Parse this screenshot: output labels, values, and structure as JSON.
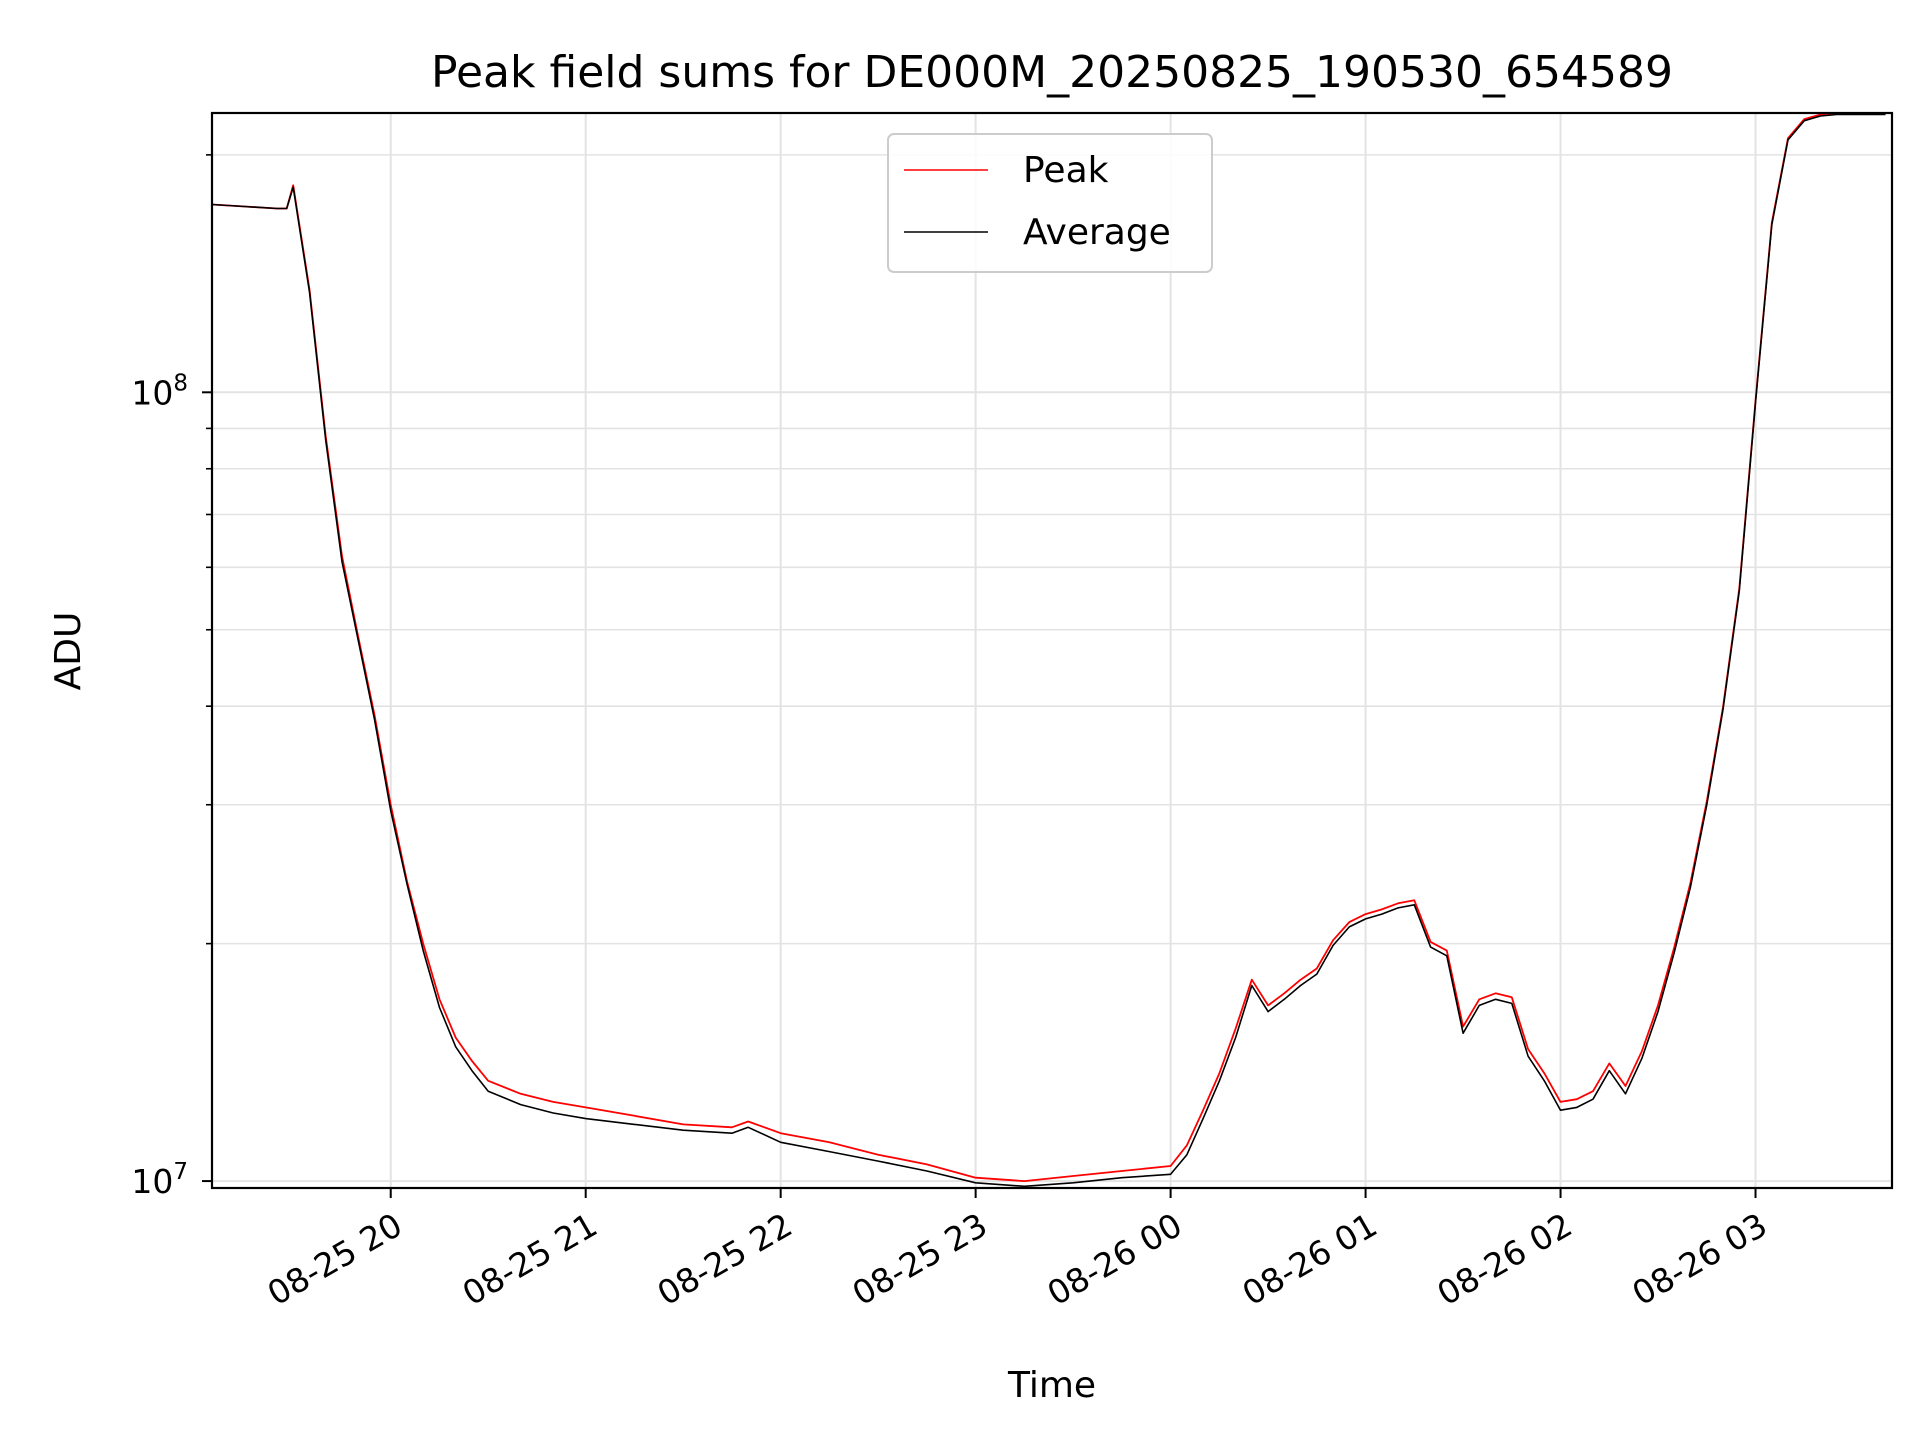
{
  "chart_data": {
    "type": "line",
    "title": "Peak field sums for DE000M_20250825_190530_654589",
    "xlabel": "Time",
    "ylabel": "ADU",
    "yscale": "log",
    "xlim": [
      "08-25 19:05",
      "08-26 03:42"
    ],
    "ylim": [
      9800000,
      226000000
    ],
    "grid": true,
    "legend_position": "top-center",
    "x_ticks": [
      "08-25 20",
      "08-25 21",
      "08-25 22",
      "08-25 23",
      "08-26 00",
      "08-26 01",
      "08-26 02",
      "08-26 03"
    ],
    "y_ticks": [
      {
        "label": "10",
        "exp": "7",
        "value": 10000000
      },
      {
        "label": "10",
        "exp": "8",
        "value": 100000000
      }
    ],
    "x": [
      "08-25 19:05",
      "08-25 19:15",
      "08-25 19:25",
      "08-25 19:28",
      "08-25 19:30",
      "08-25 19:35",
      "08-25 19:40",
      "08-25 19:45",
      "08-25 19:50",
      "08-25 19:55",
      "08-25 20:00",
      "08-25 20:05",
      "08-25 20:10",
      "08-25 20:15",
      "08-25 20:20",
      "08-25 20:25",
      "08-25 20:30",
      "08-25 20:40",
      "08-25 20:50",
      "08-25 21:00",
      "08-25 21:15",
      "08-25 21:30",
      "08-25 21:45",
      "08-25 21:50",
      "08-25 22:00",
      "08-25 22:15",
      "08-25 22:30",
      "08-25 22:45",
      "08-25 23:00",
      "08-25 23:15",
      "08-25 23:30",
      "08-25 23:45",
      "08-26 00:00",
      "08-26 00:05",
      "08-26 00:10",
      "08-26 00:15",
      "08-26 00:20",
      "08-26 00:25",
      "08-26 00:30",
      "08-26 00:35",
      "08-26 00:40",
      "08-26 00:45",
      "08-26 00:50",
      "08-26 00:55",
      "08-26 01:00",
      "08-26 01:05",
      "08-26 01:10",
      "08-26 01:15",
      "08-26 01:20",
      "08-26 01:25",
      "08-26 01:30",
      "08-26 01:35",
      "08-26 01:40",
      "08-26 01:45",
      "08-26 01:50",
      "08-26 01:55",
      "08-26 02:00",
      "08-26 02:05",
      "08-26 02:10",
      "08-26 02:15",
      "08-26 02:20",
      "08-26 02:25",
      "08-26 02:30",
      "08-26 02:35",
      "08-26 02:40",
      "08-26 02:45",
      "08-26 02:50",
      "08-26 02:55",
      "08-26 03:00",
      "08-26 03:05",
      "08-26 03:10",
      "08-26 03:15",
      "08-26 03:20",
      "08-26 03:25",
      "08-26 03:30",
      "08-26 03:35",
      "08-26 03:40"
    ],
    "series": [
      {
        "name": "Peak",
        "color": "#ff0000",
        "values": [
          173000000,
          172000000,
          171000000,
          171000000,
          183000000,
          135000000,
          88000000,
          62000000,
          49000000,
          39000000,
          30000000,
          24000000,
          20000000,
          17000000,
          15200000,
          14200000,
          13400000,
          12900000,
          12600000,
          12400000,
          12100000,
          11800000,
          11700000,
          11900000,
          11500000,
          11200000,
          10800000,
          10500000,
          10100000,
          10000000,
          10150000,
          10300000,
          10450000,
          11100000,
          12300000,
          13700000,
          15600000,
          18000000,
          16700000,
          17300000,
          18000000,
          18600000,
          20200000,
          21300000,
          21800000,
          22100000,
          22500000,
          22700000,
          20100000,
          19600000,
          15700000,
          17000000,
          17300000,
          17100000,
          14700000,
          13700000,
          12600000,
          12700000,
          13000000,
          14100000,
          13200000,
          14600000,
          16700000,
          19800000,
          23900000,
          30300000,
          39900000,
          56400000,
          97500000,
          164000000,
          210000000,
          222000000,
          225000000,
          226000000,
          226000000,
          226000000,
          226000000
        ]
      },
      {
        "name": "Average",
        "color": "#000000",
        "values": [
          173000000,
          172000000,
          171000000,
          171000000,
          182000000,
          134000000,
          87000000,
          61000000,
          48500000,
          38500000,
          29500000,
          23800000,
          19600000,
          16600000,
          14800000,
          13800000,
          13000000,
          12500000,
          12200000,
          12000000,
          11800000,
          11600000,
          11500000,
          11700000,
          11200000,
          10900000,
          10600000,
          10300000,
          9950000,
          9850000,
          9950000,
          10100000,
          10200000,
          10800000,
          12000000,
          13400000,
          15200000,
          17700000,
          16400000,
          17000000,
          17700000,
          18300000,
          19900000,
          21000000,
          21500000,
          21800000,
          22200000,
          22400000,
          19800000,
          19300000,
          15400000,
          16700000,
          17000000,
          16800000,
          14400000,
          13400000,
          12300000,
          12400000,
          12700000,
          13800000,
          12900000,
          14300000,
          16400000,
          19500000,
          23600000,
          30000000,
          39600000,
          56000000,
          97000000,
          163000000,
          209000000,
          221000000,
          224000000,
          225000000,
          225000000,
          225000000,
          225000000
        ]
      }
    ]
  }
}
